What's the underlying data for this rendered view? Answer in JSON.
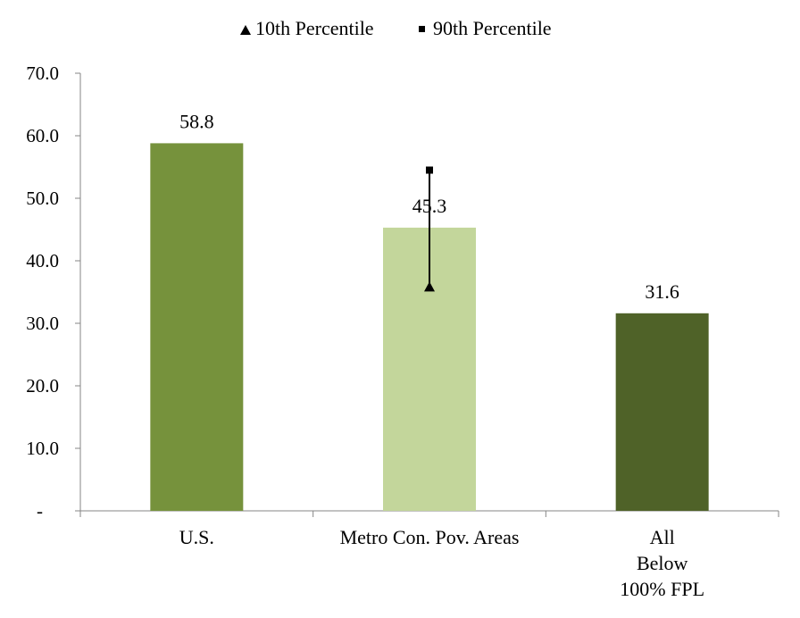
{
  "chart_data": {
    "type": "bar",
    "categories": [
      "U.S.",
      "Metro Con. Pov. Areas",
      "All Below 100% FPL"
    ],
    "category_lines": [
      [
        "U.S."
      ],
      [
        "Metro Con. Pov. Areas"
      ],
      [
        "All",
        "Below",
        "100% FPL"
      ]
    ],
    "values": [
      58.8,
      45.3,
      31.6
    ],
    "data_labels": [
      "58.8",
      "45.3",
      "31.6"
    ],
    "bar_colors": [
      "#76923C",
      "#C3D69B",
      "#4F6228"
    ],
    "percentiles": [
      {
        "category": "Metro Con. Pov. Areas",
        "p10": 35.8,
        "p90": 54.5
      }
    ],
    "legend": [
      {
        "label": "10th Percentile",
        "marker": "triangle"
      },
      {
        "label": "90th Percentile",
        "marker": "square"
      }
    ],
    "legend_position": "top",
    "ylim": [
      0,
      70
    ],
    "yticks": [
      "-",
      "10.0",
      "20.0",
      "30.0",
      "40.0",
      "50.0",
      "60.0",
      "70.0"
    ],
    "grid": false,
    "title": "",
    "xlabel": "",
    "ylabel": ""
  }
}
